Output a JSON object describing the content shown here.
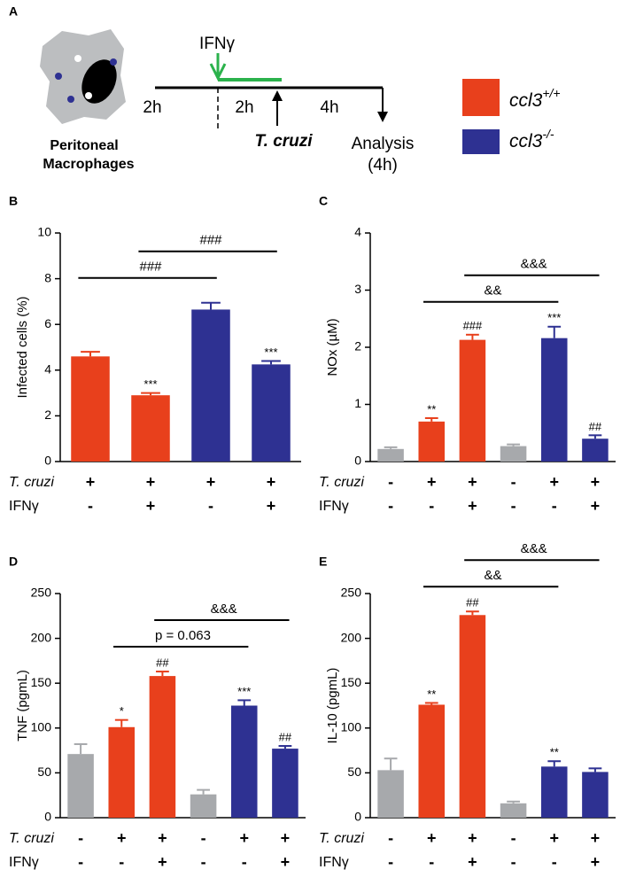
{
  "schematic": {
    "label": "A",
    "cell_label": [
      "Peritoneal",
      "Macrophages"
    ],
    "stimulus": "IFNγ",
    "intervals": [
      "2h",
      "2h",
      "4h"
    ],
    "infection": "T. cruzi",
    "analysis": [
      "Analysis",
      "(4h)"
    ]
  },
  "legend": [
    {
      "name": "ccl3+/+",
      "color": "#e8401c"
    },
    {
      "name": "ccl3-/-",
      "color": "#2e3192"
    }
  ],
  "chart_data": [
    {
      "type": "bar",
      "panel": "B",
      "ylabel": "Infected cells (%)",
      "ylim": [
        0,
        10
      ],
      "yticks": [
        0,
        2,
        4,
        6,
        8,
        10
      ],
      "values": [
        4.6,
        2.9,
        6.65,
        4.25
      ],
      "errors": [
        0.2,
        0.1,
        0.3,
        0.15
      ],
      "colors": [
        "#e8401c",
        "#e8401c",
        "#2e3192",
        "#2e3192"
      ],
      "annotations": [
        null,
        "***",
        null,
        "***"
      ],
      "brackets": [
        {
          "label": "###",
          "from": 0,
          "to": 2
        },
        {
          "label": "###",
          "from": 1,
          "to": 3
        }
      ],
      "conditions": [
        {
          "name": "T. cruzi",
          "signs": [
            "+",
            "+",
            "+",
            "+"
          ]
        },
        {
          "name": "IFNγ",
          "signs": [
            "-",
            "+",
            "-",
            "+"
          ]
        }
      ]
    },
    {
      "type": "bar",
      "panel": "C",
      "ylabel": "NOx (µM)",
      "ylim": [
        0,
        4
      ],
      "yticks": [
        0,
        1,
        2,
        3,
        4
      ],
      "values": [
        0.22,
        0.7,
        2.13,
        0.27,
        2.16,
        0.4
      ],
      "errors": [
        0.03,
        0.06,
        0.09,
        0.03,
        0.2,
        0.06
      ],
      "colors": [
        "#a7a9ac",
        "#e8401c",
        "#e8401c",
        "#a7a9ac",
        "#2e3192",
        "#2e3192"
      ],
      "annotations": [
        null,
        "**",
        "###",
        null,
        "***",
        "##"
      ],
      "brackets": [
        {
          "label": "&&",
          "from": 1,
          "to": 4
        },
        {
          "label": "&&&",
          "from": 2,
          "to": 5
        }
      ],
      "conditions": [
        {
          "name": "T. cruzi",
          "signs": [
            "-",
            "+",
            "+",
            "-",
            "+",
            "+"
          ]
        },
        {
          "name": "IFNγ",
          "signs": [
            "-",
            "-",
            "+",
            "-",
            "-",
            "+"
          ]
        }
      ]
    },
    {
      "type": "bar",
      "panel": "D",
      "ylabel": "TNF (pgmL)",
      "ylim": [
        0,
        250
      ],
      "yticks": [
        0,
        50,
        100,
        150,
        200,
        250
      ],
      "values": [
        71,
        101,
        158,
        26,
        125,
        77
      ],
      "errors": [
        11,
        8,
        5,
        5,
        6,
        3
      ],
      "colors": [
        "#a7a9ac",
        "#e8401c",
        "#e8401c",
        "#a7a9ac",
        "#2e3192",
        "#2e3192"
      ],
      "annotations": [
        null,
        "*",
        "##",
        null,
        "***",
        "##"
      ],
      "brackets": [
        {
          "label": "p = 0.063",
          "from": 1,
          "to": 4
        },
        {
          "label": "&&&",
          "from": 2,
          "to": 5
        }
      ],
      "conditions": [
        {
          "name": "T. cruzi",
          "signs": [
            "-",
            "+",
            "+",
            "-",
            "+",
            "+"
          ]
        },
        {
          "name": "IFNγ",
          "signs": [
            "-",
            "-",
            "+",
            "-",
            "-",
            "+"
          ]
        }
      ]
    },
    {
      "type": "bar",
      "panel": "E",
      "ylabel": "IL-10 (pgmL)",
      "ylim": [
        0,
        250
      ],
      "yticks": [
        0,
        50,
        100,
        150,
        200,
        250
      ],
      "values": [
        53,
        126,
        226,
        16,
        57,
        51
      ],
      "errors": [
        13,
        2,
        4,
        2,
        6,
        4
      ],
      "colors": [
        "#a7a9ac",
        "#e8401c",
        "#e8401c",
        "#a7a9ac",
        "#2e3192",
        "#2e3192"
      ],
      "annotations": [
        null,
        "**",
        "##",
        null,
        "**",
        null
      ],
      "brackets": [
        {
          "label": "&&",
          "from": 1,
          "to": 4
        },
        {
          "label": "&&&",
          "from": 2,
          "to": 5
        }
      ],
      "conditions": [
        {
          "name": "T. cruzi",
          "signs": [
            "-",
            "+",
            "+",
            "-",
            "+",
            "+"
          ]
        },
        {
          "name": "IFNγ",
          "signs": [
            "-",
            "-",
            "+",
            "-",
            "-",
            "+"
          ]
        }
      ]
    }
  ]
}
